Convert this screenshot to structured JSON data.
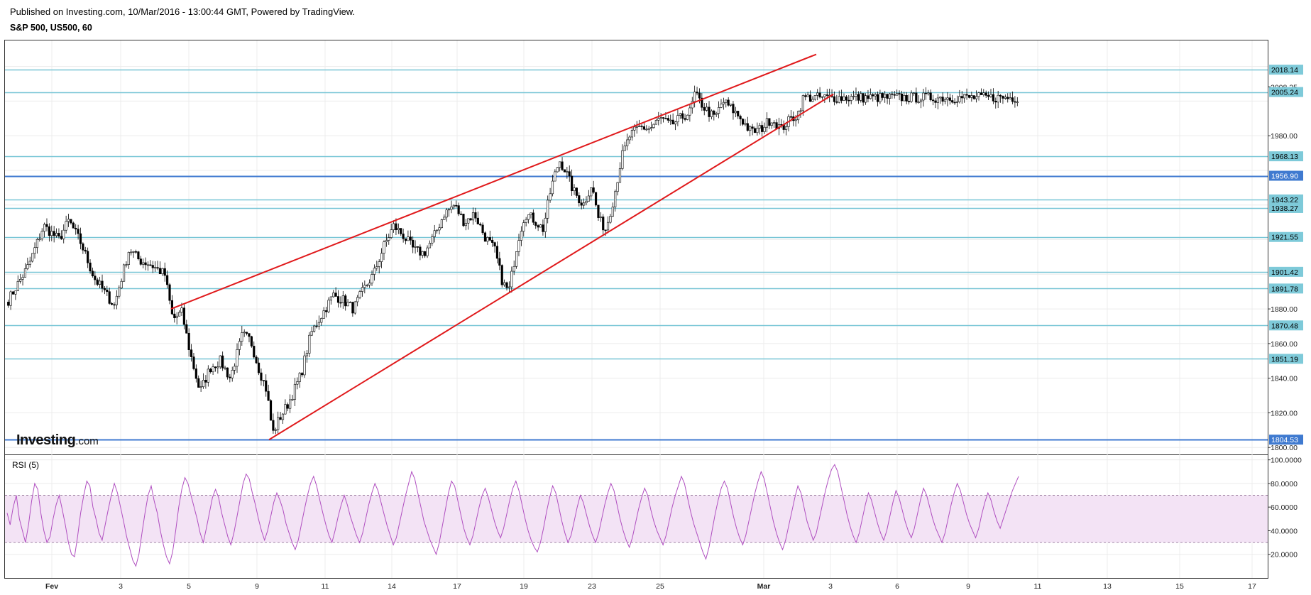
{
  "header": {
    "published": "Published on Investing.com, 10/Mar/2016 - 13:00:44 GMT, Powered by TradingView.",
    "symbol": "S&P 500, US500, 60"
  },
  "logo": {
    "main": "Investing",
    "suffix": ".com"
  },
  "colors": {
    "up_candle": "#ffffff",
    "down_candle": "#000000",
    "wick": "#000000",
    "support_line": "#79c6d6",
    "key_line": "#3f7ad0",
    "trend_line": "#e0191b",
    "rsi_line": "#b04fc0",
    "rsi_band": "#f3e3f5",
    "label_box": "#7ecad9",
    "label_box_dark": "#3f7ad0",
    "grid": "#ececec"
  },
  "chart_data": [
    {
      "type": "candlestick",
      "title": "S&P 500, US500, 60",
      "ylim": [
        1796,
        2035
      ],
      "x_ticks": [
        "Fev",
        "3",
        "5",
        "9",
        "11",
        "14",
        "17",
        "19",
        "23",
        "25",
        "Mar",
        "3",
        "6",
        "9",
        "11",
        "13",
        "15",
        "17"
      ],
      "y_ticks": [
        "2008.25",
        "1980.00",
        "1880.00",
        "1860.00",
        "1840.00",
        "1820.00",
        "1800.00"
      ],
      "horizontal_levels": [
        {
          "value": 2018.14,
          "label": "2018.14",
          "style": "support"
        },
        {
          "value": 2005.24,
          "label": "2005.24",
          "style": "support"
        },
        {
          "value": 1968.13,
          "label": "1968.13",
          "style": "support"
        },
        {
          "value": 1956.9,
          "label": "1956.90",
          "style": "key"
        },
        {
          "value": 1943.22,
          "label": "1943.22",
          "style": "support"
        },
        {
          "value": 1938.27,
          "label": "1938.27",
          "style": "support"
        },
        {
          "value": 1921.55,
          "label": "1921.55",
          "style": "support"
        },
        {
          "value": 1901.42,
          "label": "1901.42",
          "style": "support"
        },
        {
          "value": 1891.78,
          "label": "1891.78",
          "style": "support"
        },
        {
          "value": 1870.48,
          "label": "1870.48",
          "style": "support"
        },
        {
          "value": 1851.19,
          "label": "1851.19",
          "style": "support"
        },
        {
          "value": 1804.53,
          "label": "1804.53",
          "style": "key"
        }
      ],
      "trend_lines": [
        {
          "name": "upper",
          "from": {
            "x": 0.162,
            "y": 1880
          },
          "to": {
            "x": 0.8,
            "y": 2027
          }
        },
        {
          "name": "lower",
          "from": {
            "x": 0.259,
            "y": 1804.5
          },
          "to": {
            "x": 0.817,
            "y": 2004
          }
        }
      ],
      "path": [
        [
          0.0,
          1885
        ],
        [
          0.02,
          1905
        ],
        [
          0.035,
          1928
        ],
        [
          0.05,
          1920
        ],
        [
          0.06,
          1931
        ],
        [
          0.072,
          1918
        ],
        [
          0.085,
          1898
        ],
        [
          0.095,
          1890
        ],
        [
          0.105,
          1882
        ],
        [
          0.12,
          1915
        ],
        [
          0.13,
          1908
        ],
        [
          0.14,
          1906
        ],
        [
          0.155,
          1900
        ],
        [
          0.163,
          1874
        ],
        [
          0.172,
          1878
        ],
        [
          0.18,
          1855
        ],
        [
          0.19,
          1832
        ],
        [
          0.2,
          1846
        ],
        [
          0.21,
          1850
        ],
        [
          0.22,
          1840
        ],
        [
          0.232,
          1865
        ],
        [
          0.24,
          1862
        ],
        [
          0.248,
          1846
        ],
        [
          0.256,
          1833
        ],
        [
          0.262,
          1808
        ],
        [
          0.268,
          1816
        ],
        [
          0.278,
          1826
        ],
        [
          0.29,
          1842
        ],
        [
          0.3,
          1866
        ],
        [
          0.31,
          1876
        ],
        [
          0.322,
          1888
        ],
        [
          0.332,
          1885
        ],
        [
          0.342,
          1880
        ],
        [
          0.352,
          1891
        ],
        [
          0.362,
          1900
        ],
        [
          0.372,
          1916
        ],
        [
          0.382,
          1928
        ],
        [
          0.392,
          1922
        ],
        [
          0.402,
          1914
        ],
        [
          0.412,
          1912
        ],
        [
          0.422,
          1922
        ],
        [
          0.432,
          1935
        ],
        [
          0.442,
          1940
        ],
        [
          0.452,
          1930
        ],
        [
          0.462,
          1935
        ],
        [
          0.472,
          1922
        ],
        [
          0.482,
          1914
        ],
        [
          0.49,
          1895
        ],
        [
          0.496,
          1890
        ],
        [
          0.505,
          1920
        ],
        [
          0.512,
          1935
        ],
        [
          0.52,
          1932
        ],
        [
          0.53,
          1926
        ],
        [
          0.538,
          1950
        ],
        [
          0.546,
          1966
        ],
        [
          0.552,
          1960
        ],
        [
          0.56,
          1948
        ],
        [
          0.57,
          1940
        ],
        [
          0.578,
          1952
        ],
        [
          0.585,
          1932
        ],
        [
          0.592,
          1926
        ],
        [
          0.6,
          1944
        ],
        [
          0.608,
          1968
        ],
        [
          0.616,
          1980
        ],
        [
          0.626,
          1985
        ],
        [
          0.636,
          1984
        ],
        [
          0.646,
          1990
        ],
        [
          0.656,
          1986
        ],
        [
          0.666,
          1990
        ],
        [
          0.676,
          1994
        ],
        [
          0.68,
          2004
        ],
        [
          0.69,
          1996
        ],
        [
          0.7,
          1990
        ],
        [
          0.708,
          2000
        ],
        [
          0.716,
          1996
        ],
        [
          0.726,
          1990
        ],
        [
          0.736,
          1982
        ],
        [
          0.746,
          1984
        ],
        [
          0.756,
          1990
        ],
        [
          0.766,
          1984
        ],
        [
          0.776,
          1990
        ],
        [
          0.782,
          1992
        ],
        [
          0.788,
          2002
        ]
      ]
    },
    {
      "type": "line",
      "title": "RSI (5)",
      "ylim": [
        0,
        104
      ],
      "y_ticks": [
        "100.0000",
        "80.0000",
        "60.0000",
        "40.0000",
        "20.0000"
      ],
      "band": [
        30,
        70
      ],
      "series": [
        {
          "values": [
            55,
            45,
            60,
            70,
            50,
            40,
            30,
            45,
            65,
            80,
            75,
            55,
            40,
            30,
            35,
            50,
            62,
            70,
            58,
            45,
            30,
            20,
            18,
            35,
            55,
            70,
            82,
            78,
            60,
            50,
            38,
            32,
            45,
            58,
            70,
            80,
            72,
            60,
            48,
            35,
            25,
            15,
            10,
            20,
            38,
            55,
            70,
            78,
            65,
            55,
            40,
            28,
            18,
            12,
            22,
            40,
            60,
            75,
            85,
            80,
            70,
            60,
            50,
            38,
            30,
            42,
            55,
            68,
            75,
            68,
            55,
            45,
            35,
            28,
            38,
            52,
            66,
            80,
            88,
            84,
            72,
            62,
            50,
            40,
            32,
            40,
            52,
            64,
            72,
            66,
            58,
            46,
            38,
            30,
            24,
            32,
            45,
            58,
            70,
            80,
            86,
            78,
            66,
            55,
            45,
            36,
            30,
            40,
            52,
            62,
            70,
            62,
            52,
            44,
            36,
            30,
            38,
            50,
            62,
            72,
            80,
            74,
            64,
            54,
            44,
            36,
            28,
            34,
            46,
            58,
            70,
            80,
            90,
            84,
            72,
            60,
            48,
            40,
            32,
            26,
            20,
            30,
            44,
            58,
            72,
            82,
            78,
            66,
            54,
            42,
            34,
            28,
            36,
            48,
            60,
            70,
            76,
            68,
            58,
            48,
            40,
            34,
            42,
            54,
            66,
            76,
            82,
            74,
            62,
            50,
            40,
            32,
            26,
            22,
            30,
            42,
            56,
            68,
            78,
            72,
            60,
            48,
            38,
            30,
            36,
            48,
            60,
            70,
            64,
            54,
            44,
            36,
            30,
            38,
            50,
            62,
            72,
            80,
            74,
            62,
            50,
            40,
            32,
            26,
            34,
            46,
            58,
            68,
            76,
            70,
            58,
            48,
            40,
            34,
            28,
            36,
            48,
            60,
            70,
            78,
            86,
            80,
            68,
            56,
            46,
            38,
            30,
            22,
            16,
            26,
            40,
            54,
            66,
            76,
            82,
            76,
            64,
            52,
            42,
            34,
            28,
            36,
            48,
            60,
            72,
            82,
            90,
            84,
            72,
            60,
            48,
            38,
            30,
            24,
            32,
            44,
            56,
            68,
            78,
            72,
            60,
            48,
            40,
            32,
            38,
            50,
            62,
            74,
            84,
            92,
            96,
            90,
            78,
            66,
            54,
            44,
            36,
            30,
            38,
            50,
            62,
            72,
            66,
            56,
            46,
            38,
            32,
            40,
            52,
            64,
            74,
            68,
            58,
            48,
            40,
            34,
            42,
            54,
            66,
            76,
            70,
            60,
            50,
            42,
            36,
            30,
            38,
            50,
            62,
            72,
            80,
            74,
            64,
            54,
            46,
            40,
            34,
            42,
            54,
            64,
            72,
            66,
            56,
            48,
            42,
            50,
            58,
            66,
            74,
            80,
            86
          ]
        }
      ]
    }
  ]
}
